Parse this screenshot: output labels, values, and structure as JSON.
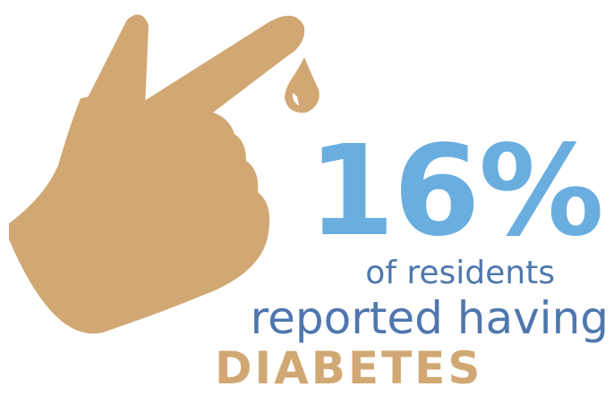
{
  "infographic": {
    "percent": "16%",
    "line1": "of residents",
    "line2": "reported having",
    "line3": "DIABETES"
  },
  "graphic": {
    "icon": "finger-prick-hand-icon",
    "drop_icon": "blood-drop-icon"
  },
  "colors": {
    "hand": "#d1a873",
    "percent": "#6aaedf",
    "body_text": "#4f77ae",
    "keyword": "#d1a873"
  }
}
